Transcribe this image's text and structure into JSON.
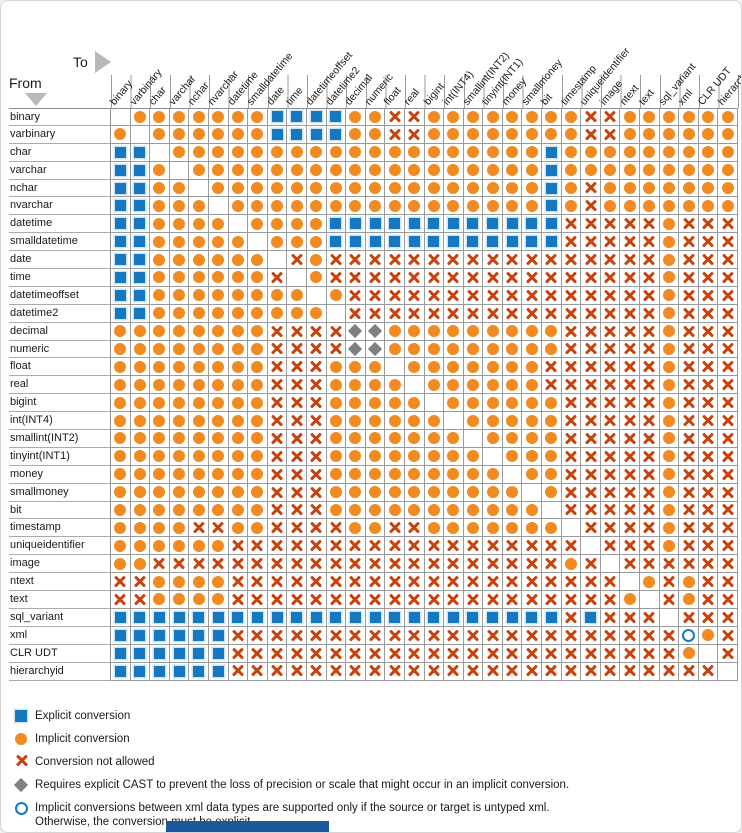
{
  "header": {
    "to_label": "To",
    "from_label": "From"
  },
  "legend": [
    {
      "symbol": "square",
      "label": "Explicit conversion"
    },
    {
      "symbol": "circle",
      "label": "Implicit conversion"
    },
    {
      "symbol": "cross",
      "label": "Conversion not allowed"
    },
    {
      "symbol": "diamond",
      "label": "Requires explicit CAST to prevent the loss of precision or scale that might occur in an implicit conversion."
    },
    {
      "symbol": "open-circle",
      "label": "Implicit conversions between xml data types are supported only if the source or target is untyped xml.\nOtherwise, the conversion must be explicit."
    }
  ],
  "colors": {
    "explicit_blue": "#1778c2",
    "implicit_orange": "#f18a21",
    "not_allowed_red": "#c8420e",
    "diamond_gray": "#7f7f7f",
    "bottom_bar_blue": "#1a5a9c"
  },
  "chart_data": {
    "type": "table",
    "row_axis_label": "From",
    "col_axis_label": "To",
    "symbol_key": {
      "E": "explicit conversion",
      "I": "implicit conversion",
      "X": "conversion not allowed",
      "D": "requires explicit CAST to prevent loss of precision or scale",
      "O": "implicit xml conversion only if source or target is untyped xml",
      ".": "same type (blank diagonal)"
    },
    "types": [
      "binary",
      "varbinary",
      "char",
      "varchar",
      "nchar",
      "nvarchar",
      "datetime",
      "smalldatetime",
      "date",
      "time",
      "datetimeoffset",
      "datetime2",
      "decimal",
      "numeric",
      "float",
      "real",
      "bigint",
      "int(INT4)",
      "smallint(INT2)",
      "tinyint(INT1)",
      "money",
      "smallmoney",
      "bit",
      "timestamp",
      "uniqueidentifier",
      "image",
      "ntext",
      "text",
      "sql_variant",
      "xml",
      "CLR UDT",
      "hierarchyid"
    ],
    "matrix": [
      ".IIIIIIIEEEEIIXXIIIIIIIIXXIIIIII",
      "I.IIIIIIEEEEIIXXIIIIIIIIXXIIIIII",
      "EE.IIIIIIIIIIIIIIIIIIIEIIIIIIIII",
      "EEI.IIIIIIIIIIIIIIIIIIEIIIIIIIII",
      "EEII.IIIIIIIIIIIIIIIIIEIXIIIIIII",
      "EEIII.IIIIIIIIIIIIIIIIEIXIIIIIII",
      "EEIIII.IIIIEEEEEEEEEEEEXXXXXIXXX",
      "EEIIIII.IIIEEEEEEEEEEEEXXXXXIXXX",
      "EEIIIIII.XIXXXXXXXXXXXXXXXXXIXXX",
      "EEIIIIIIX.IXXXXXXXXXXXXXXXXXIXXX",
      "EEIIIIIIII.IXXXXXXXXXXXXXXXXIXXX",
      "EEIIIIIIIII.XXXXXXXXXXXXXXXXIXXX",
      "IIIIIIIIXXXXDDIIIIIIIIIXXXXXIXXX",
      "IIIIIIIIXXXXDDIIIIIIIIIXXXXXIXXX",
      "IIIIIIIIXXXIII.IIIIIIIXXXXXXIXXX",
      "IIIIIIIIXXXIIII.IIIIIIXXXXXXIXXX",
      "IIIIIIIIXXXIIIII.IIIIIIXXXXXIXXX",
      "IIIIIIIIXXXIIIIII.IIIIIXXXXXIXXX",
      "IIIIIIIIXXXIIIIIII.IIIIXXXXXIXXX",
      "IIIIIIIIXXXIIIIIIII.IIIXXXXXIXXX",
      "IIIIIIIIXXXIIIIIIIII.IIXXXXXIXXX",
      "IIIIIIIIXXXIIIIIIIIII.IXXXXXIXXX",
      "IIIIIIIIXXXIIIIIIIIIII.XXXXXIXXX",
      "IIIIXXIIXXXXIIXXIIIIIII.XXXXIXXX",
      "IIIIIIXXXXXXXXXXXXXXXXXX.XXXIXXX",
      "IIXXXXXXXXXXXXXXXXXXXXXIX.XXXXXX",
      "XXIIIIXXXXXXXXXXXXXXXXXXXX.IXIXX",
      "XXIIIIXXXXXXXXXXXXXXXXXXXXI.XIXX",
      "EEEEEEEEEEEEEEEEEEEEEEEXEXXX.XXX",
      "EEEEEEXXXXXXXXXXXXXXXXXXXXXXXOIX",
      "EEEEEEXXXXXXXXXXXXXXXXXXXXXXXI.X",
      "EEEEEEXXXXXXXXXXXXXXXXXXXXXXXXX."
    ]
  }
}
